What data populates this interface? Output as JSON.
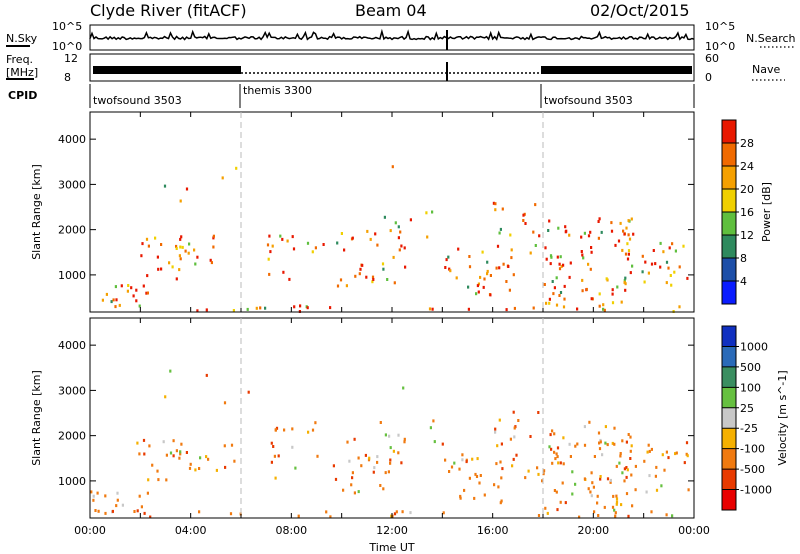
{
  "header": {
    "station": "Clyde River (fitACF)",
    "beam": "Beam 04",
    "date": "02/Oct/2015"
  },
  "top_panels": {
    "nsky_label": "N.Sky",
    "nsky_ticks": [
      "10^5",
      "10^0"
    ],
    "nsearch_label": "N.Search",
    "nsearch_ticks": [
      "10^5",
      "10^0"
    ],
    "freq_label_line1": "Freq.",
    "freq_label_line2": "[MHz]",
    "freq_ticks": [
      "12",
      "8"
    ],
    "nave_label": "Nave",
    "nave_ticks": [
      "60",
      "0"
    ],
    "cpid_label": "CPID",
    "cpid_segments": [
      {
        "name": "twofsound 3503",
        "start_h": 0,
        "end_h": 6
      },
      {
        "name": "themis 3300",
        "start_h": 6,
        "end_h": 18
      },
      {
        "name": "twofsound 3503",
        "start_h": 18,
        "end_h": 24
      }
    ]
  },
  "chart_data": [
    {
      "type": "heatmap",
      "name": "power-panel",
      "xlabel": "",
      "ylabel": "Slant Range [km]",
      "xlim": [
        0,
        24
      ],
      "ylim": [
        180,
        4600
      ],
      "yticks": [
        1000,
        2000,
        3000,
        4000
      ],
      "colorbar": {
        "label": "Power [dB]",
        "ticks": [
          "4",
          "8",
          "12",
          "16",
          "20",
          "24",
          "28"
        ],
        "colors": [
          "#0a1cff",
          "#1d4fa8",
          "#2e8a5e",
          "#5fbf3e",
          "#f0d000",
          "#f5a000",
          "#f06a00",
          "#e81800"
        ]
      }
    },
    {
      "type": "heatmap",
      "name": "velocity-panel",
      "xlabel": "Time UT",
      "ylabel": "Slant Range [km]",
      "xlim": [
        0,
        24
      ],
      "ylim": [
        180,
        4600
      ],
      "xticks": [
        "00:00",
        "04:00",
        "08:00",
        "12:00",
        "16:00",
        "20:00",
        "00:00"
      ],
      "yticks": [
        1000,
        2000,
        3000,
        4000
      ],
      "colorbar": {
        "label": "Velocity [m s^-1]",
        "ticks": [
          "1000",
          "500",
          "100",
          "25",
          "-25",
          "-100",
          "-500",
          "-1000"
        ],
        "colors": [
          "#1030c0",
          "#2a6ab8",
          "#3a8e60",
          "#66c040",
          "#c8c8c8",
          "#f5b000",
          "#f07a10",
          "#e83a00",
          "#e80000"
        ]
      }
    }
  ]
}
